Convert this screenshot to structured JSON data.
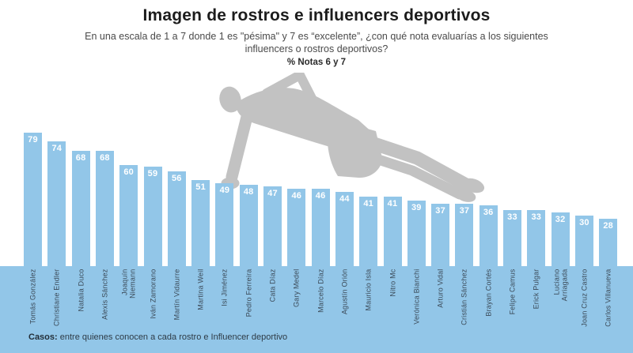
{
  "header": {
    "title": "Imagen de rostros e influencers deportivos",
    "subtitle": "En una escala de 1 a 7 donde 1 es \"pésima\" y 7 es “excelente”, ¿con qué nota evaluarías a los siguientes influencers o rostros deportivos?",
    "metric_note": "% Notas 6 y 7"
  },
  "chart_data": {
    "type": "bar",
    "title": "Imagen de rostros e influencers deportivos",
    "subtitle": "% Notas 6 y 7",
    "categories": [
      "Tomás González",
      "Christiane Endler",
      "Natalia Duco",
      "Alexis Sánchez",
      "Joaquín\nNiemann",
      "Iván Zamorano",
      "Martín Vidaurre",
      "Martina Weil",
      "Isi Jiménez",
      "Pedro Ferreira",
      "Cata Díaz",
      "Gary Medel",
      "Marcelo Díaz",
      "Agustín Orión",
      "Mauricio Isla",
      "Nitro Mc",
      "Verónica Bianchi",
      "Arturo Vidal",
      "Cristián Sánchez",
      "Brayan Cortés",
      "Felipe Camus",
      "Erick Pulgar",
      "Luciano\nArriagada",
      "Joan Cruz Castro",
      "Carlos Villanueva"
    ],
    "values": [
      79,
      74,
      68,
      68,
      60,
      59,
      56,
      51,
      49,
      48,
      47,
      46,
      46,
      44,
      41,
      41,
      39,
      37,
      37,
      36,
      33,
      33,
      32,
      30,
      28
    ],
    "xlabel": "",
    "ylabel": "% notas 6 y 7",
    "ylim": [
      0,
      100
    ],
    "grid": false,
    "legend": null,
    "bar_color": "#92C6E8",
    "value_label_color": "#FFFFFF",
    "category_label_color": "#3B4A58"
  },
  "footer": {
    "label": "Casos:",
    "text": " entre quienes conocen a cada rostro e Influencer deportivo"
  },
  "decor": {
    "silhouette": "side-plank-athlete-silhouette",
    "silhouette_color": "#C2C2C2"
  }
}
